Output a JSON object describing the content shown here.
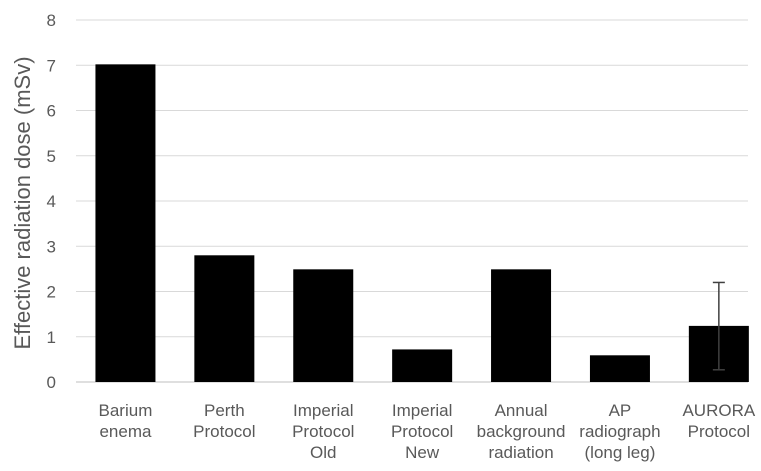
{
  "chart_data": {
    "type": "bar",
    "title": "",
    "xlabel": "",
    "ylabel": "Effective radiation dose (mSv)",
    "ylim": [
      0,
      8
    ],
    "yticks": [
      0,
      1,
      2,
      3,
      4,
      5,
      6,
      7,
      8
    ],
    "grid": true,
    "legend": "none",
    "bar_color": "#000000",
    "grid_color": "#d9d9d9",
    "categories": [
      {
        "lines": [
          "Barium",
          "enema"
        ]
      },
      {
        "lines": [
          "Perth",
          "Protocol"
        ]
      },
      {
        "lines": [
          "Imperial",
          "Protocol",
          "Old"
        ]
      },
      {
        "lines": [
          "Imperial",
          "Protocol",
          "New"
        ]
      },
      {
        "lines": [
          "Annual",
          "background",
          "radiation"
        ]
      },
      {
        "lines": [
          "AP",
          "radiograph",
          "(long leg)"
        ]
      },
      {
        "lines": [
          "AURORA",
          "Protocol"
        ]
      }
    ],
    "values": [
      7.02,
      2.8,
      2.49,
      0.72,
      2.49,
      0.59,
      1.24
    ],
    "error_bars": [
      null,
      null,
      null,
      null,
      null,
      null,
      {
        "low": 0.27,
        "high": 2.2
      }
    ]
  }
}
